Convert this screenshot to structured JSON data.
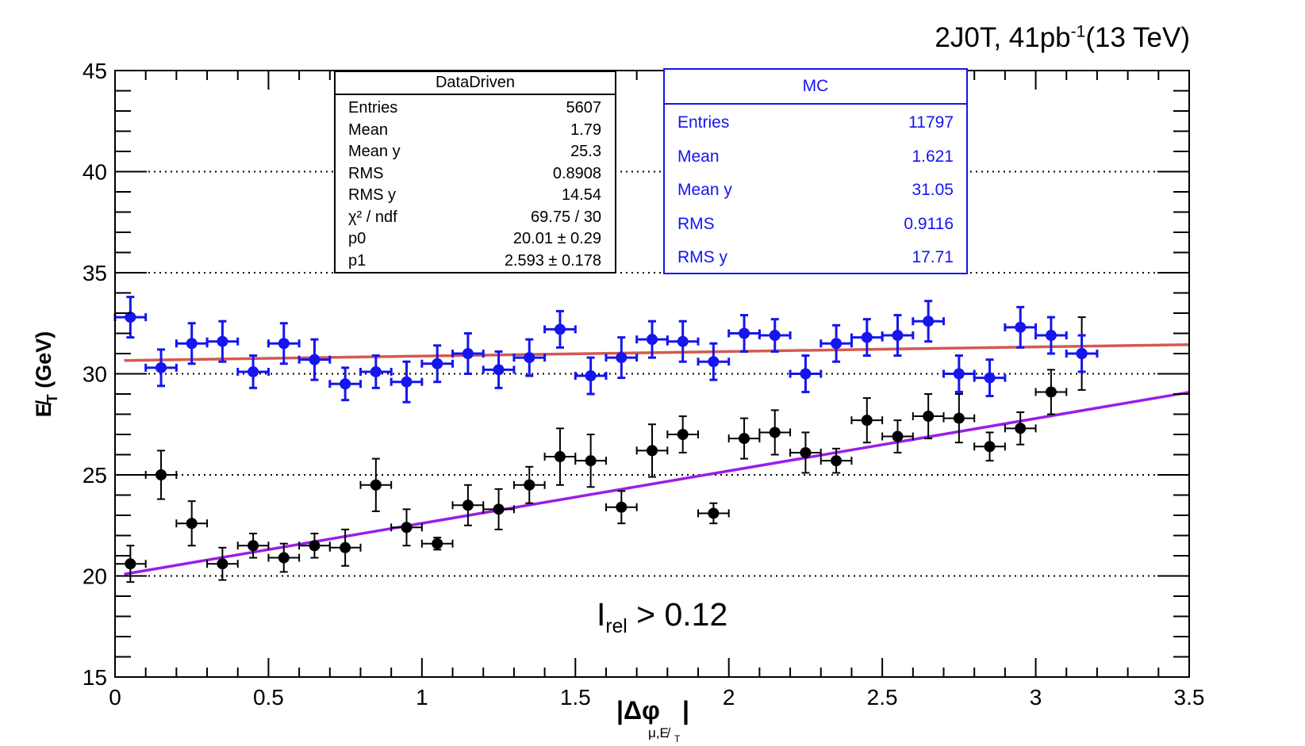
{
  "header": {
    "title_main": "2J0T, 41pb",
    "title_sup": "-1",
    "title_tail": "(13 TeV)"
  },
  "annotation": {
    "main": "I",
    "sub": "rel",
    "tail": " > 0.12"
  },
  "colors": {
    "data_driven": "#000000",
    "mc": "#1515ee",
    "fit_data_driven": "#9a1ee8",
    "fit_mc": "#d45a50",
    "grid": "#000000"
  },
  "stat_boxes": {
    "data_driven": {
      "title": "DataDriven",
      "rows": [
        {
          "label": "Entries",
          "value": "5607"
        },
        {
          "label": "Mean",
          "value": "1.79"
        },
        {
          "label": "Mean y",
          "value": "25.3"
        },
        {
          "label": "RMS",
          "value": "0.8908"
        },
        {
          "label": "RMS y",
          "value": "14.54"
        },
        {
          "label": "χ² / ndf",
          "value": "69.75 / 30"
        },
        {
          "label": "p0",
          "value": "20.01 ± 0.29"
        },
        {
          "label": "p1",
          "value": "2.593 ± 0.178"
        }
      ]
    },
    "mc": {
      "title": "MC",
      "rows": [
        {
          "label": "Entries",
          "value": "11797"
        },
        {
          "label": "Mean",
          "value": "1.621"
        },
        {
          "label": "Mean y",
          "value": "31.05"
        },
        {
          "label": "RMS",
          "value": "0.9116"
        },
        {
          "label": "RMS y",
          "value": "17.71"
        }
      ]
    }
  },
  "chart_data": {
    "type": "scatter",
    "title": "2J0T, 41pb-1(13 TeV)",
    "xlabel": "|Δφ μ,E̸T|",
    "ylabel": "E̸T (GeV)",
    "xlim": [
      0,
      3.5
    ],
    "ylim": [
      15,
      45
    ],
    "x_ticks": [
      0,
      0.5,
      1,
      1.5,
      2,
      2.5,
      3,
      3.5
    ],
    "x_tick_labels": [
      "0",
      "0.5",
      "1",
      "1.5",
      "2",
      "2.5",
      "3",
      "3.5"
    ],
    "y_ticks": [
      15,
      20,
      25,
      30,
      35,
      40,
      45
    ],
    "y_tick_labels": [
      "15",
      "20",
      "25",
      "30",
      "35",
      "40",
      "45"
    ],
    "y_gridlines": [
      20,
      25,
      30,
      35,
      40
    ],
    "grid": "horizontal dotted",
    "x_bin_half_width": 0.05,
    "series": [
      {
        "name": "DataDriven",
        "x": [
          0.05,
          0.15,
          0.25,
          0.35,
          0.45,
          0.55,
          0.65,
          0.75,
          0.85,
          0.95,
          1.05,
          1.15,
          1.25,
          1.35,
          1.45,
          1.55,
          1.65,
          1.75,
          1.85,
          1.95,
          2.05,
          2.15,
          2.25,
          2.35,
          2.45,
          2.55,
          2.65,
          2.75,
          2.85,
          2.95,
          3.05,
          3.15
        ],
        "y": [
          20.6,
          25.0,
          22.6,
          20.6,
          21.5,
          20.9,
          21.5,
          21.4,
          24.5,
          22.4,
          21.6,
          23.5,
          23.3,
          24.5,
          25.9,
          25.7,
          23.4,
          26.2,
          27.0,
          23.1,
          26.8,
          27.1,
          26.1,
          25.7,
          27.7,
          26.9,
          27.9,
          27.8,
          26.4,
          27.3,
          29.1,
          31.0
        ],
        "y_err": [
          0.9,
          1.2,
          1.1,
          0.8,
          0.6,
          0.7,
          0.6,
          0.9,
          1.3,
          0.9,
          0.3,
          1.0,
          1.0,
          0.9,
          1.4,
          1.3,
          0.8,
          1.3,
          0.9,
          0.5,
          1.0,
          1.1,
          1.0,
          0.6,
          1.1,
          0.8,
          1.1,
          1.2,
          0.7,
          0.8,
          1.1,
          1.8
        ]
      },
      {
        "name": "MC",
        "x": [
          0.05,
          0.15,
          0.25,
          0.35,
          0.45,
          0.55,
          0.65,
          0.75,
          0.85,
          0.95,
          1.05,
          1.15,
          1.25,
          1.35,
          1.45,
          1.55,
          1.65,
          1.75,
          1.85,
          1.95,
          2.05,
          2.15,
          2.25,
          2.35,
          2.45,
          2.55,
          2.65,
          2.75,
          2.85,
          2.95,
          3.05,
          3.15
        ],
        "y": [
          32.8,
          30.3,
          31.5,
          31.6,
          30.1,
          31.5,
          30.7,
          29.5,
          30.1,
          29.6,
          30.5,
          31.0,
          30.2,
          30.8,
          32.2,
          29.9,
          30.8,
          31.7,
          31.6,
          30.6,
          32.0,
          31.9,
          30.0,
          31.5,
          31.8,
          31.9,
          32.6,
          30.0,
          29.8,
          32.3,
          31.9,
          31.0
        ],
        "y_err": [
          1.0,
          0.9,
          1.0,
          1.0,
          0.8,
          1.0,
          1.0,
          0.8,
          0.8,
          1.0,
          0.9,
          1.0,
          0.9,
          0.9,
          0.9,
          0.9,
          1.0,
          0.9,
          1.0,
          0.9,
          0.9,
          0.8,
          0.9,
          0.9,
          0.9,
          1.0,
          1.0,
          0.9,
          0.9,
          1.0,
          0.9,
          0.9
        ]
      }
    ],
    "fits": [
      {
        "name": "DataDriven fit",
        "type": "linear",
        "p0": 20.01,
        "p1": 2.593,
        "x_range": [
          0.03,
          3.5
        ]
      },
      {
        "name": "MC fit",
        "type": "linear",
        "p0": 30.65,
        "p1": 0.226,
        "x_range": [
          0.03,
          3.5
        ]
      }
    ]
  }
}
